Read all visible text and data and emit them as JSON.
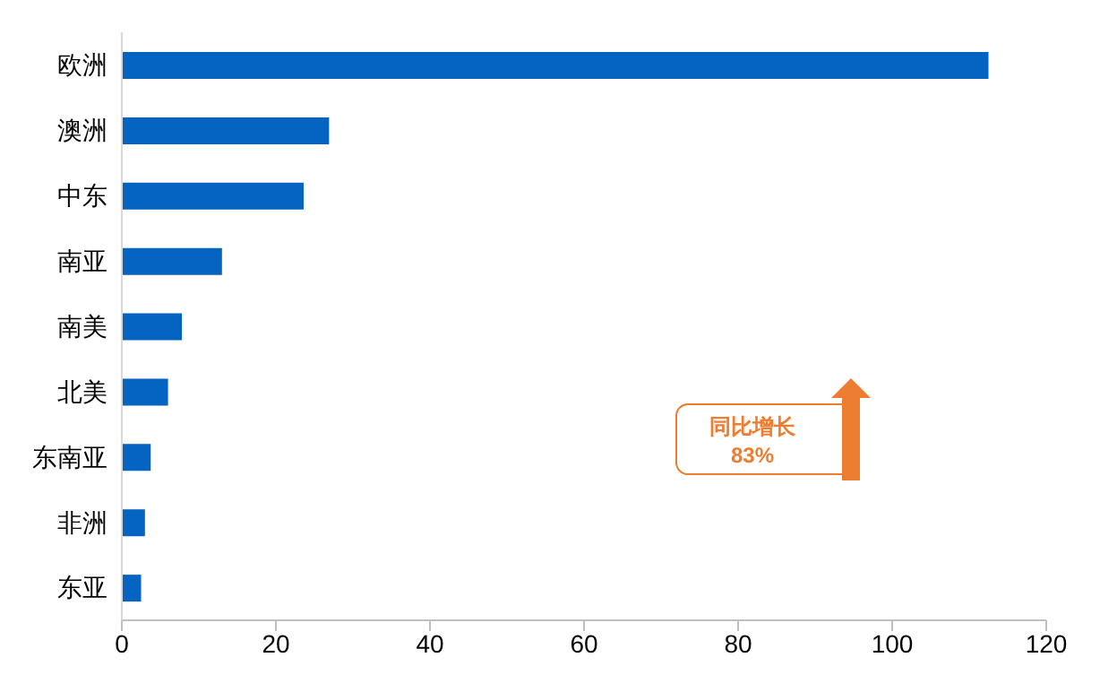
{
  "chart_data": {
    "type": "bar",
    "orientation": "horizontal",
    "categories": [
      "欧洲",
      "澳洲",
      "中东",
      "南亚",
      "南美",
      "北美",
      "东南亚",
      "非洲",
      "东亚"
    ],
    "values": [
      112.5,
      26.9,
      23.6,
      13,
      7.8,
      6,
      3.75,
      3,
      2.5
    ],
    "color": "#0563c1",
    "xlim": [
      0,
      120
    ],
    "xticks": [
      0,
      20,
      40,
      60,
      80,
      100,
      120
    ],
    "grid": false,
    "annotations": [
      "同比增长",
      "83%"
    ]
  }
}
